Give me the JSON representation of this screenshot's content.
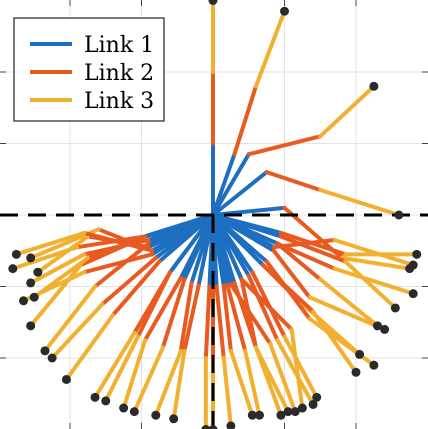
{
  "chart_data": {
    "type": "line",
    "title": "",
    "xlabel": "",
    "ylabel": "",
    "xlim": [
      -3,
      3
    ],
    "ylim": [
      -3,
      3
    ],
    "grid": true,
    "legend_position": "top-left",
    "axes": {
      "xticks": [
        -2,
        -1,
        0,
        1,
        2
      ],
      "yticks": [
        -2,
        -1,
        0,
        1,
        2
      ],
      "tick_labels_visible": false
    },
    "reference_lines": {
      "horizontal_dashed_y": 0,
      "vertical_dashed_x": 0,
      "color": "#000000"
    },
    "series": [
      {
        "name": "Link 1",
        "color": "#1f6fc0"
      },
      {
        "name": "Link 2",
        "color": "#e85a20"
      },
      {
        "name": "Link 3",
        "color": "#f2b030"
      }
    ],
    "end_effector_color": "#2a2a2a",
    "configurations": [
      {
        "joints": [
          [
            0,
            0
          ],
          [
            0,
            1
          ],
          [
            0,
            2
          ],
          [
            0,
            3
          ]
        ]
      },
      {
        "joints": [
          [
            0,
            0
          ],
          [
            0.3,
            0.85
          ],
          [
            0.6,
            1.8
          ],
          [
            1.0,
            2.85
          ]
        ]
      },
      {
        "joints": [
          [
            0,
            0
          ],
          [
            0.5,
            0.85
          ],
          [
            1.5,
            1.1
          ],
          [
            2.25,
            1.8
          ]
        ]
      },
      {
        "joints": [
          [
            0,
            0
          ],
          [
            0.75,
            0.6
          ],
          [
            1.5,
            0.35
          ],
          [
            2.6,
            0.0
          ]
        ]
      },
      {
        "joints": [
          [
            0,
            0
          ],
          [
            1.0,
            0.1
          ],
          [
            1.8,
            -0.6
          ],
          [
            2.75,
            -0.75
          ]
        ]
      },
      {
        "joints": [
          [
            0,
            0
          ],
          [
            0.9,
            -0.4
          ],
          [
            1.7,
            -0.75
          ],
          [
            2.8,
            -1.1
          ]
        ]
      },
      {
        "joints": [
          [
            0,
            0
          ],
          [
            0.85,
            -0.5
          ],
          [
            1.35,
            -1.15
          ],
          [
            2.4,
            -1.6
          ]
        ]
      },
      {
        "joints": [
          [
            0,
            0
          ],
          [
            0.7,
            -0.7
          ],
          [
            1.2,
            -1.2
          ],
          [
            2.05,
            -1.95
          ]
        ]
      },
      {
        "joints": [
          [
            0,
            0
          ],
          [
            0.75,
            -0.65
          ],
          [
            1.35,
            -1.45
          ],
          [
            2.25,
            -2.1
          ]
        ]
      },
      {
        "joints": [
          [
            0,
            0
          ],
          [
            0.5,
            -0.85
          ],
          [
            0.9,
            -1.75
          ],
          [
            1.4,
            -2.65
          ]
        ]
      },
      {
        "joints": [
          [
            0,
            0
          ],
          [
            0.4,
            -0.9
          ],
          [
            1.1,
            -1.6
          ],
          [
            1.25,
            -2.7
          ]
        ]
      },
      {
        "joints": [
          [
            0,
            0
          ],
          [
            0.4,
            -0.9
          ],
          [
            0.6,
            -1.85
          ],
          [
            1.05,
            -2.75
          ]
        ]
      },
      {
        "joints": [
          [
            0,
            0
          ],
          [
            0.3,
            -0.95
          ],
          [
            0.6,
            -1.85
          ],
          [
            0.95,
            -2.8
          ]
        ]
      },
      {
        "joints": [
          [
            0,
            0
          ],
          [
            0.2,
            -0.98
          ],
          [
            0.45,
            -1.9
          ],
          [
            0.65,
            -2.8
          ]
        ]
      },
      {
        "joints": [
          [
            0,
            0
          ],
          [
            0.15,
            -0.99
          ],
          [
            0.25,
            -1.9
          ],
          [
            0.55,
            -2.8
          ]
        ]
      },
      {
        "joints": [
          [
            0,
            0
          ],
          [
            0.05,
            -1.0
          ],
          [
            0.15,
            -2.0
          ],
          [
            0.25,
            -2.95
          ]
        ]
      },
      {
        "joints": [
          [
            0,
            0
          ],
          [
            0,
            -1.0
          ],
          [
            0,
            -2.0
          ],
          [
            0,
            -3.0
          ]
        ]
      },
      {
        "joints": [
          [
            0,
            0
          ],
          [
            -0.05,
            -1.0
          ],
          [
            -0.1,
            -2.0
          ],
          [
            -0.1,
            -3.0
          ]
        ]
      },
      {
        "joints": [
          [
            0,
            0
          ],
          [
            -0.2,
            -0.98
          ],
          [
            -0.4,
            -1.9
          ],
          [
            -0.55,
            -2.85
          ]
        ]
      },
      {
        "joints": [
          [
            0,
            0
          ],
          [
            -0.4,
            -0.9
          ],
          [
            -0.7,
            -1.85
          ],
          [
            -1.1,
            -2.75
          ]
        ]
      },
      {
        "joints": [
          [
            0,
            0
          ],
          [
            -0.45,
            -0.88
          ],
          [
            -0.95,
            -1.75
          ],
          [
            -1.25,
            -2.7
          ]
        ]
      },
      {
        "joints": [
          [
            0,
            0
          ],
          [
            -0.6,
            -0.8
          ],
          [
            -1.1,
            -1.65
          ],
          [
            -1.65,
            -2.55
          ]
        ]
      },
      {
        "joints": [
          [
            0,
            0
          ],
          [
            -0.75,
            -0.65
          ],
          [
            -1.4,
            -1.4
          ],
          [
            -2.05,
            -2.3
          ]
        ]
      },
      {
        "joints": [
          [
            0,
            0
          ],
          [
            -0.8,
            -0.6
          ],
          [
            -1.55,
            -1.25
          ],
          [
            -2.25,
            -2.0
          ]
        ]
      },
      {
        "joints": [
          [
            0,
            0
          ],
          [
            -0.9,
            -0.4
          ],
          [
            -1.65,
            -1.0
          ],
          [
            -2.35,
            -1.9
          ]
        ]
      },
      {
        "joints": [
          [
            0,
            0
          ],
          [
            -0.95,
            -0.3
          ],
          [
            -1.85,
            -0.7
          ],
          [
            -2.55,
            -1.55
          ]
        ]
      },
      {
        "joints": [
          [
            0,
            0
          ],
          [
            -0.85,
            -0.55
          ],
          [
            -1.8,
            -0.8
          ],
          [
            -2.65,
            -1.2
          ]
        ]
      },
      {
        "joints": [
          [
            0,
            0
          ],
          [
            -0.95,
            -0.3
          ],
          [
            -1.75,
            -0.6
          ],
          [
            -2.5,
            -1.15
          ]
        ]
      },
      {
        "joints": [
          [
            0,
            0
          ],
          [
            -0.9,
            -0.45
          ],
          [
            -1.75,
            -0.3
          ],
          [
            -2.45,
            -0.8
          ]
        ]
      },
      {
        "joints": [
          [
            0,
            0
          ],
          [
            -0.85,
            -0.5
          ],
          [
            -1.6,
            -0.2
          ],
          [
            -2.55,
            -0.6
          ]
        ]
      },
      {
        "joints": [
          [
            0,
            0
          ],
          [
            -0.95,
            -0.3
          ],
          [
            -1.9,
            -0.45
          ],
          [
            -2.8,
            -0.75
          ]
        ]
      },
      {
        "joints": [
          [
            0,
            0
          ],
          [
            -0.85,
            -0.5
          ],
          [
            -1.8,
            -0.25
          ],
          [
            -2.75,
            -0.55
          ]
        ]
      },
      {
        "joints": [
          [
            0,
            0
          ],
          [
            -0.9,
            -0.35
          ],
          [
            -1.8,
            -0.55
          ],
          [
            -2.55,
            -0.95
          ]
        ]
      },
      {
        "joints": [
          [
            0,
            0
          ],
          [
            0.95,
            -0.3
          ],
          [
            1.85,
            -0.65
          ],
          [
            2.55,
            -1.3
          ]
        ]
      },
      {
        "joints": [
          [
            0,
            0
          ],
          [
            0.85,
            -0.45
          ],
          [
            1.7,
            -0.35
          ],
          [
            2.8,
            -0.7
          ]
        ]
      },
      {
        "joints": [
          [
            0,
            0
          ],
          [
            0.95,
            -0.25
          ],
          [
            1.85,
            -0.55
          ],
          [
            2.85,
            -0.55
          ]
        ]
      },
      {
        "joints": [
          [
            0,
            0
          ],
          [
            0.9,
            -0.4
          ],
          [
            1.5,
            -0.9
          ],
          [
            2.3,
            -1.55
          ]
        ]
      },
      {
        "joints": [
          [
            0,
            0
          ],
          [
            0.7,
            -0.7
          ],
          [
            1.4,
            -1.35
          ],
          [
            2.0,
            -2.2
          ]
        ]
      },
      {
        "joints": [
          [
            0,
            0
          ],
          [
            0.55,
            -0.8
          ],
          [
            1.0,
            -1.7
          ],
          [
            1.45,
            -2.55
          ]
        ]
      },
      {
        "joints": [
          [
            0,
            0
          ],
          [
            -0.3,
            -0.95
          ],
          [
            -0.45,
            -1.9
          ],
          [
            -0.8,
            -2.8
          ]
        ]
      },
      {
        "joints": [
          [
            0,
            0
          ],
          [
            -0.6,
            -0.8
          ],
          [
            -1.05,
            -1.7
          ],
          [
            -1.5,
            -2.6
          ]
        ]
      },
      {
        "joints": [
          [
            0,
            0
          ],
          [
            0.25,
            -0.97
          ],
          [
            0.8,
            -1.8
          ],
          [
            1.15,
            -2.75
          ]
        ]
      }
    ]
  }
}
